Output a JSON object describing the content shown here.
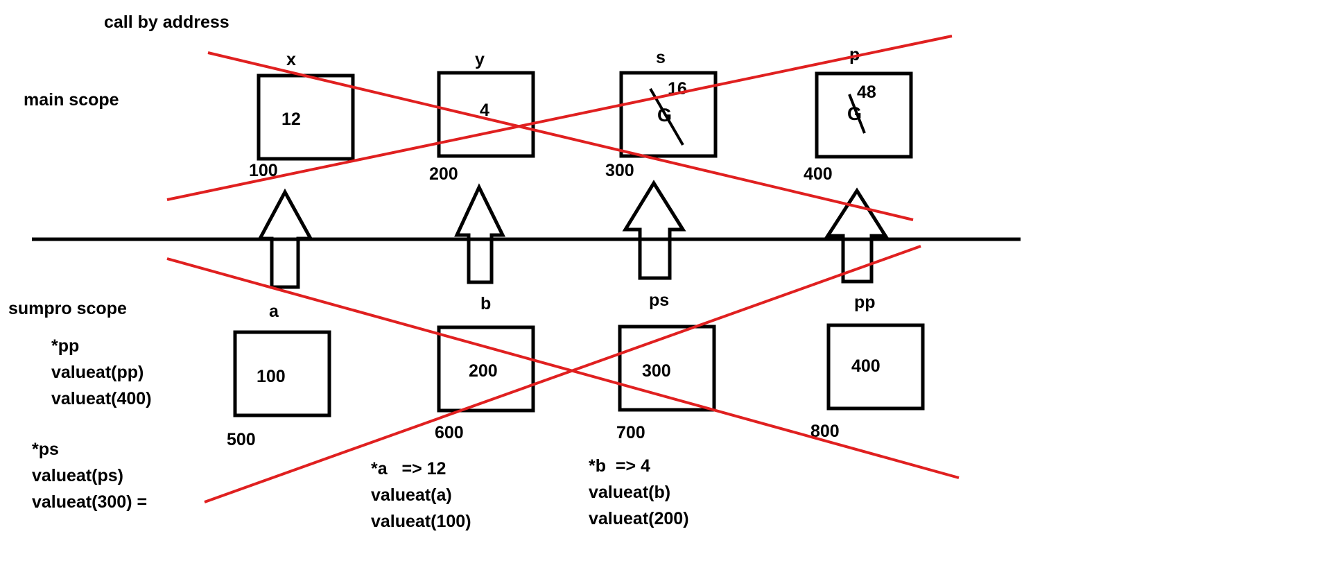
{
  "title": "call by address",
  "main_scope": {
    "label": "main scope",
    "vars": [
      {
        "name": "x",
        "value": "12",
        "addr": "100"
      },
      {
        "name": "y",
        "value": "4",
        "addr": "200"
      },
      {
        "name": "s",
        "old": "G",
        "value": "16",
        "addr": "300"
      },
      {
        "name": "p",
        "old": "G",
        "value": "48",
        "addr": "400"
      }
    ]
  },
  "sumpro_scope": {
    "label": "sumpro scope",
    "vars": [
      {
        "name": "a",
        "value": "100",
        "addr": "500"
      },
      {
        "name": "b",
        "value": "200",
        "addr": "600"
      },
      {
        "name": "ps",
        "value": "300",
        "addr": "700"
      },
      {
        "name": "pp",
        "value": "400",
        "addr": "800"
      }
    ]
  },
  "notes": {
    "pp": [
      "*pp",
      "valueat(pp)",
      "valueat(400)"
    ],
    "ps": [
      "*ps",
      "valueat(ps)",
      "valueat(300) ="
    ],
    "a": [
      "*a   => 12",
      "valueat(a)",
      "valueat(100)"
    ],
    "b": [
      "*b  => 4",
      "valueat(b)",
      "valueat(200)"
    ]
  },
  "colors": {
    "ink": "#000000",
    "strike": "#e02020"
  }
}
